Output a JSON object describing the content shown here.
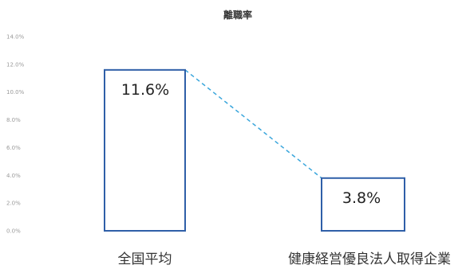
{
  "chart_data": {
    "type": "bar",
    "title": "離職率",
    "categories": [
      "全国平均",
      "健康経営優良法人取得企業"
    ],
    "values": [
      11.6,
      3.8
    ],
    "data_labels": [
      "11.6%",
      "3.8%"
    ],
    "y_ticks": [
      "0.0%",
      "2.0%",
      "4.0%",
      "6.0%",
      "8.0%",
      "10.0%",
      "12.0%",
      "14.0%"
    ],
    "ylim": [
      0,
      14
    ],
    "grid": false,
    "legend": "none",
    "connector": "dashed",
    "colors": {
      "bar_stroke": "#2f5fa8",
      "bar_fill": "#ffffff",
      "connector": "#3aa6dc",
      "tick_text": "#9a9a9a"
    }
  }
}
